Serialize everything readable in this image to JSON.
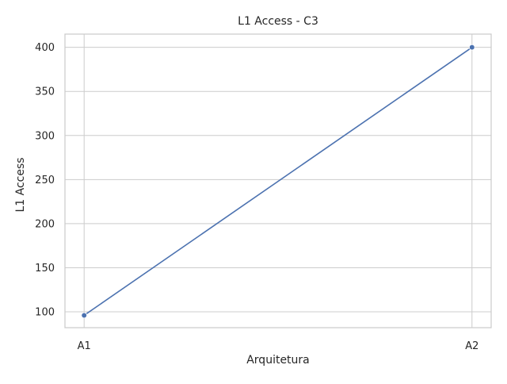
{
  "chart_data": {
    "type": "line",
    "title": "L1 Access - C3",
    "xlabel": "Arquitetura",
    "ylabel": "L1 Access",
    "categories": [
      "A1",
      "A2"
    ],
    "series": [
      {
        "values": [
          96,
          400
        ]
      }
    ],
    "ylim": [
      82,
      415
    ],
    "yticks": [
      100,
      150,
      200,
      250,
      300,
      350,
      400
    ],
    "grid": true,
    "legend": "none",
    "colors": {
      "line": "#4c72b0",
      "grid": "#cccccc",
      "axes_edge": "#cccccc",
      "text": "#262626",
      "background": "#ffffff"
    }
  }
}
